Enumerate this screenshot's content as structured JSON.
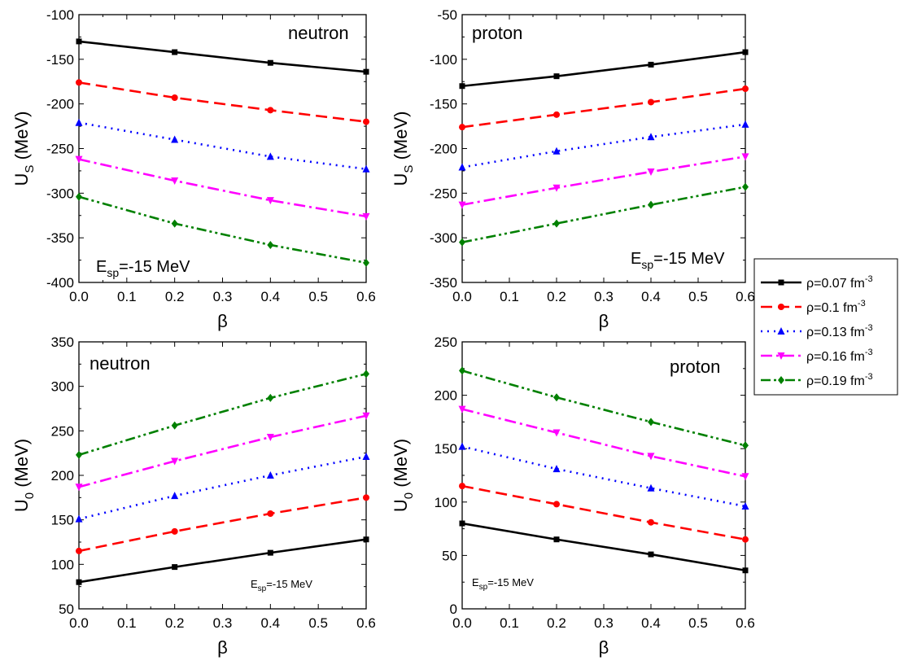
{
  "chart_data": [
    {
      "type": "line",
      "ylabel": {
        "base": "U",
        "sub": "S",
        "unit": " (MeV)"
      },
      "xlabel": "β",
      "xlim": [
        0,
        0.6
      ],
      "ylim": [
        -400,
        -100
      ],
      "xticks": [
        "0.0",
        "0.1",
        "0.2",
        "0.3",
        "0.4",
        "0.5",
        "0.6"
      ],
      "yticks": [
        "-100",
        "-150",
        "-200",
        "-250",
        "-300",
        "-350",
        "-400"
      ],
      "label": "neutron",
      "annotation": {
        "base": "E",
        "sub": "sp",
        "rest": "=-15 MeV"
      },
      "x": [
        0.0,
        0.2,
        0.4,
        0.6
      ],
      "series": [
        {
          "values": [
            -130,
            -142,
            -154,
            -164
          ]
        },
        {
          "values": [
            -176,
            -193,
            -207,
            -220
          ]
        },
        {
          "values": [
            -221,
            -240,
            -259,
            -273
          ]
        },
        {
          "values": [
            -262,
            -286,
            -308,
            -326
          ]
        },
        {
          "values": [
            -304,
            -334,
            -358,
            -378
          ]
        }
      ]
    },
    {
      "type": "line",
      "ylabel": {
        "base": "U",
        "sub": "S",
        "unit": " (MeV)"
      },
      "xlabel": "β",
      "xlim": [
        0,
        0.6
      ],
      "ylim": [
        -350,
        -50
      ],
      "xticks": [
        "0.0",
        "0.1",
        "0.2",
        "0.3",
        "0.4",
        "0.5",
        "0.6"
      ],
      "yticks": [
        "-50",
        "-100",
        "-150",
        "-200",
        "-250",
        "-300",
        "-350"
      ],
      "label": "proton",
      "annotation": {
        "base": "E",
        "sub": "sp",
        "rest": "=-15 MeV"
      },
      "x": [
        0.0,
        0.2,
        0.4,
        0.6
      ],
      "series": [
        {
          "values": [
            -130,
            -119,
            -106,
            -92
          ]
        },
        {
          "values": [
            -176,
            -162,
            -148,
            -133
          ]
        },
        {
          "values": [
            -221,
            -203,
            -187,
            -173
          ]
        },
        {
          "values": [
            -263,
            -244,
            -226,
            -209
          ]
        },
        {
          "values": [
            -305,
            -284,
            -263,
            -243
          ]
        }
      ]
    },
    {
      "type": "line",
      "ylabel": {
        "base": "U",
        "sub": "0",
        "unit": " (MeV)"
      },
      "xlabel": "β",
      "xlim": [
        0,
        0.6
      ],
      "ylim": [
        50,
        350
      ],
      "xticks": [
        "0.0",
        "0.1",
        "0.2",
        "0.3",
        "0.4",
        "0.5",
        "0.6"
      ],
      "yticks": [
        "350",
        "300",
        "250",
        "200",
        "150",
        "100",
        "50"
      ],
      "label": "neutron",
      "annotation": {
        "base": "E",
        "sub": "sp",
        "rest": "=-15 MeV"
      },
      "x": [
        0.0,
        0.2,
        0.4,
        0.6
      ],
      "series": [
        {
          "values": [
            80,
            97,
            113,
            128
          ]
        },
        {
          "values": [
            115,
            137,
            157,
            175
          ]
        },
        {
          "values": [
            151,
            177,
            200,
            221
          ]
        },
        {
          "values": [
            187,
            216,
            243,
            267
          ]
        },
        {
          "values": [
            223,
            256,
            287,
            314
          ]
        }
      ]
    },
    {
      "type": "line",
      "ylabel": {
        "base": "U",
        "sub": "0",
        "unit": " (MeV)"
      },
      "xlabel": "β",
      "xlim": [
        0,
        0.6
      ],
      "ylim": [
        0,
        250
      ],
      "xticks": [
        "0.0",
        "0.1",
        "0.2",
        "0.3",
        "0.4",
        "0.5",
        "0.6"
      ],
      "yticks": [
        "250",
        "200",
        "150",
        "100",
        "50",
        "0"
      ],
      "label": "proton",
      "annotation": {
        "base": "E",
        "sub": "sp",
        "rest": "=-15 MeV"
      },
      "x": [
        0.0,
        0.2,
        0.4,
        0.6
      ],
      "series": [
        {
          "values": [
            80,
            65,
            51,
            36
          ]
        },
        {
          "values": [
            115,
            98,
            81,
            65
          ]
        },
        {
          "values": [
            152,
            131,
            113,
            96
          ]
        },
        {
          "values": [
            187,
            165,
            143,
            124
          ]
        },
        {
          "values": [
            223,
            198,
            175,
            153
          ]
        }
      ]
    }
  ],
  "legend": {
    "entries": [
      {
        "prefix": "ρ=0.07 fm",
        "sup": "-3",
        "color": "#000000",
        "dash": "solid",
        "marker": "square"
      },
      {
        "prefix": "ρ=0.1 fm",
        "sup": "-3",
        "color": "#ff0000",
        "dash": "dash",
        "marker": "circle"
      },
      {
        "prefix": "ρ=0.13 fm",
        "sup": "-3",
        "color": "#0000ff",
        "dash": "dot",
        "marker": "triangle-up"
      },
      {
        "prefix": "ρ=0.16 fm",
        "sup": "-3",
        "color": "#ff00ff",
        "dash": "dashdot",
        "marker": "triangle-down"
      },
      {
        "prefix": "ρ=0.19 fm",
        "sup": "-3",
        "color": "#008000",
        "dash": "dashdotdot",
        "marker": "diamond"
      }
    ]
  }
}
